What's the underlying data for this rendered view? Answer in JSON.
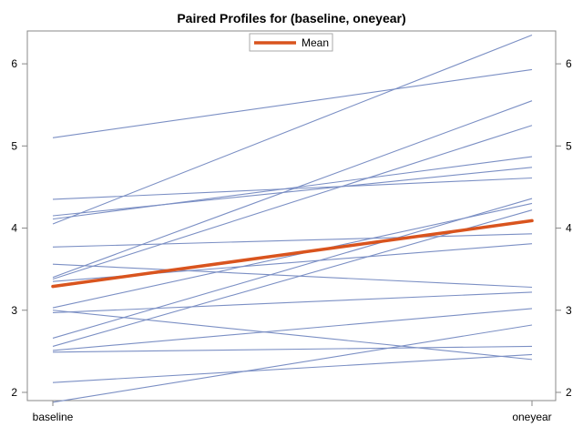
{
  "chart_data": {
    "type": "line",
    "title": "Paired Profiles for (baseline, oneyear)",
    "categories": [
      "baseline",
      "oneyear"
    ],
    "ylim": [
      1.9,
      6.4
    ],
    "yticks": [
      2,
      3,
      4,
      5,
      6
    ],
    "grid": false,
    "legend": {
      "position": "top-center",
      "entries": [
        {
          "name": "Mean",
          "color": "#d9541e"
        }
      ]
    },
    "colors": {
      "profile": "#7b8fc4",
      "mean": "#d9541e",
      "frame": "#888888"
    },
    "series": [
      {
        "values": [
          5.1,
          5.93
        ]
      },
      {
        "values": [
          4.05,
          6.35
        ]
      },
      {
        "values": [
          4.35,
          4.61
        ]
      },
      {
        "values": [
          4.15,
          4.74
        ]
      },
      {
        "values": [
          4.11,
          4.87
        ]
      },
      {
        "values": [
          3.77,
          3.93
        ]
      },
      {
        "values": [
          3.56,
          3.28
        ]
      },
      {
        "values": [
          3.4,
          5.55
        ]
      },
      {
        "values": [
          3.38,
          5.25
        ]
      },
      {
        "values": [
          3.35,
          3.81
        ]
      },
      {
        "values": [
          3.03,
          4.3
        ]
      },
      {
        "values": [
          3.0,
          2.4
        ]
      },
      {
        "values": [
          2.97,
          3.22
        ]
      },
      {
        "values": [
          2.66,
          4.36
        ]
      },
      {
        "values": [
          2.56,
          4.22
        ]
      },
      {
        "values": [
          2.51,
          3.02
        ]
      },
      {
        "values": [
          2.49,
          2.56
        ]
      },
      {
        "values": [
          2.12,
          2.46
        ]
      },
      {
        "values": [
          1.88,
          2.82
        ]
      }
    ],
    "mean": {
      "name": "Mean",
      "values": [
        3.29,
        4.09
      ]
    }
  }
}
